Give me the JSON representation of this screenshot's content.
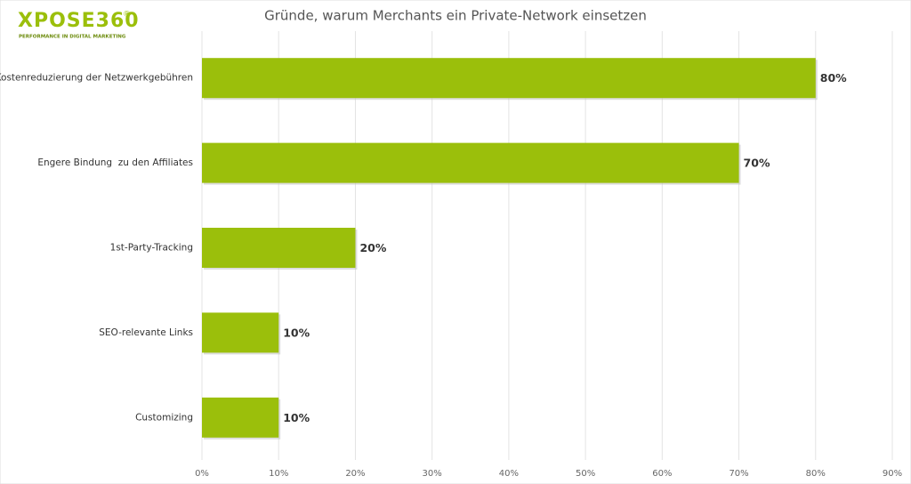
{
  "chart_data": {
    "type": "bar",
    "orientation": "horizontal",
    "title": "Gründe, warum Merchants ein Private-Network einsetzen",
    "logo": {
      "name": "XPOSE360",
      "mark": "®",
      "tagline": "PERFORMANCE IN DIGITAL MARKETING"
    },
    "categories": [
      "Kostenreduzierung der Netzwerkgebühren",
      "Engere Bindung  zu den Affiliates",
      "1st-Party-Tracking",
      "SEO-relevante Links",
      "Customizing"
    ],
    "values": [
      80,
      70,
      20,
      10,
      10
    ],
    "value_labels": [
      "80%",
      "70%",
      "20%",
      "10%",
      "10%"
    ],
    "color": "#9bbf0b",
    "xlim": [
      0,
      90
    ],
    "xticks": [
      {
        "value": 0,
        "label": "0%"
      },
      {
        "value": 10,
        "label": "10%"
      },
      {
        "value": 20,
        "label": "20%"
      },
      {
        "value": 30,
        "label": "30%"
      },
      {
        "value": 40,
        "label": "40%"
      },
      {
        "value": 50,
        "label": "50%"
      },
      {
        "value": 60,
        "label": "60%"
      },
      {
        "value": 70,
        "label": "70%"
      },
      {
        "value": 80,
        "label": "80%"
      },
      {
        "value": 90,
        "label": "90%"
      }
    ],
    "grid": true
  }
}
